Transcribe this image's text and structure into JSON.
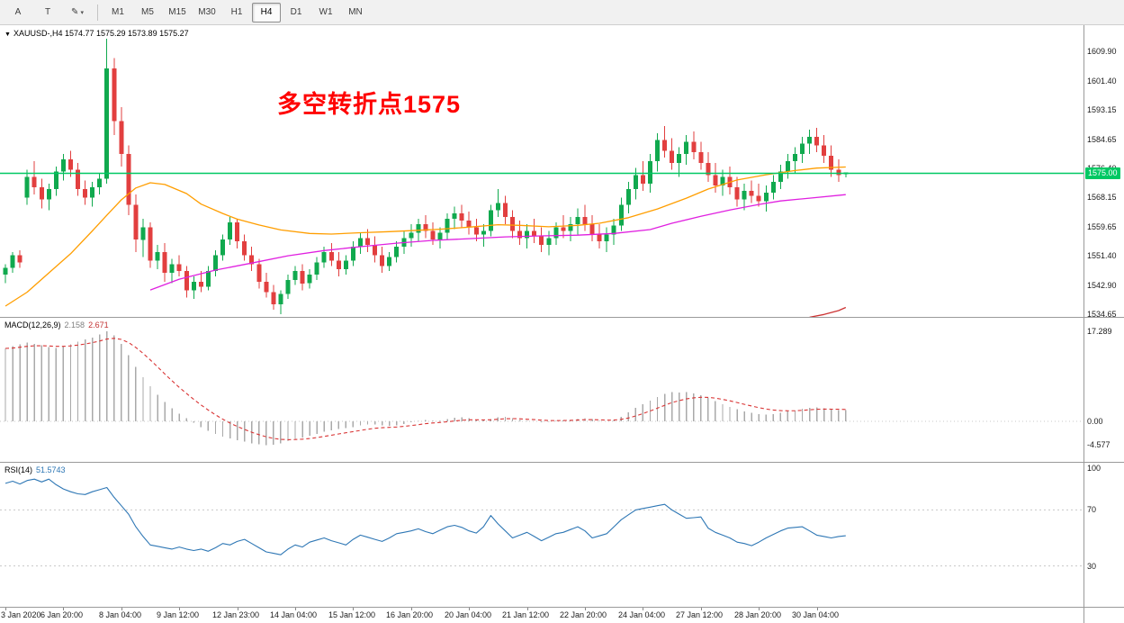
{
  "toolbar": {
    "tools": [
      {
        "name": "cursor-tool",
        "label": "A"
      },
      {
        "name": "text-tool",
        "label": "T"
      },
      {
        "name": "draw-tool",
        "label": "✎",
        "caret": "▾"
      }
    ],
    "timeframes": [
      {
        "label": "M1"
      },
      {
        "label": "M5"
      },
      {
        "label": "M15"
      },
      {
        "label": "M30"
      },
      {
        "label": "H1"
      },
      {
        "label": "H4",
        "selected": true
      },
      {
        "label": "D1"
      },
      {
        "label": "W1"
      },
      {
        "label": "MN"
      }
    ]
  },
  "main_chart": {
    "collapse_icon": "▼",
    "symbol_text": "XAUUSD-,H4",
    "ohlc_text": "1574.77 1575.29 1573.89 1575.27",
    "annotation_text": "多空转折点1575",
    "hline": {
      "price": 1575.0,
      "label": "1575.00"
    },
    "axis": {
      "max": 1617.4,
      "min": 1533.9
    },
    "scale_ticks": [
      "1609.90",
      "1601.40",
      "1593.15",
      "1584.65",
      "1576.40",
      "1568.15",
      "1559.65",
      "1551.40",
      "1542.90",
      "1534.65"
    ]
  },
  "macd_panel": {
    "label": "MACD(12,26,9)",
    "value_main": "2.158",
    "value_signal": "2.671",
    "axis": {
      "max": 19.88,
      "min": -7.78
    },
    "scale_ticks": [
      "17.289",
      "0.00",
      "-4.577"
    ]
  },
  "rsi_panel": {
    "label": "RSI(14)",
    "value": "51.5743",
    "axis": {
      "max": 103.7,
      "min": 0.8
    },
    "levels": [
      70,
      30
    ],
    "scale_ticks": [
      "100",
      "70",
      "30"
    ]
  },
  "colors": {
    "bull": "#10a94e",
    "bear": "#e23f3f",
    "hline": "#00c863",
    "annotation": "#ff0000",
    "macd_hist": "#a9a9a9",
    "macd_signal": "#d93434",
    "rsi_line": "#2e77b5",
    "value_main": "#808080",
    "value_signal": "#c23232"
  },
  "chart_data": {
    "type": "candlestick",
    "symbol": "XAUUSD-",
    "timeframe": "H4",
    "title": "XAUUSD-,H4",
    "price_range": [
      1533.9,
      1617.4
    ],
    "ohlc": [
      [
        1546,
        1549,
        1543.5,
        1548
      ],
      [
        1548,
        1552.5,
        1546.5,
        1551.5
      ],
      [
        1551.5,
        1553,
        1548,
        1549.5
      ],
      [
        1568,
        1576,
        1566,
        1574
      ],
      [
        1574,
        1578.5,
        1569,
        1571
      ],
      [
        1571,
        1573.5,
        1565,
        1567.5
      ],
      [
        1567.5,
        1572,
        1564.5,
        1570.5
      ],
      [
        1570.5,
        1577,
        1568.5,
        1575.5
      ],
      [
        1575.5,
        1580.5,
        1573,
        1579
      ],
      [
        1579,
        1581.5,
        1574,
        1576
      ],
      [
        1576,
        1578,
        1568.5,
        1570.5
      ],
      [
        1570.5,
        1573,
        1566,
        1568
      ],
      [
        1568,
        1572.5,
        1565.5,
        1571
      ],
      [
        1571,
        1575,
        1569,
        1573.5
      ],
      [
        1573.5,
        1613.5,
        1572,
        1605
      ],
      [
        1605,
        1608,
        1586,
        1590
      ],
      [
        1590,
        1594,
        1577,
        1580.5
      ],
      [
        1580.5,
        1583,
        1563,
        1566
      ],
      [
        1566,
        1569,
        1552.5,
        1556
      ],
      [
        1556,
        1562,
        1551,
        1559.5
      ],
      [
        1559.5,
        1561,
        1548,
        1550
      ],
      [
        1550,
        1554.5,
        1547.5,
        1552.5
      ],
      [
        1552.5,
        1555,
        1544,
        1546.5
      ],
      [
        1546.5,
        1550.5,
        1543.5,
        1549
      ],
      [
        1549,
        1551.5,
        1545.5,
        1547
      ],
      [
        1547,
        1548.5,
        1539.5,
        1541.5
      ],
      [
        1541.5,
        1545.5,
        1539,
        1544
      ],
      [
        1544,
        1547,
        1541,
        1542.5
      ],
      [
        1542.5,
        1548.5,
        1541.5,
        1547
      ],
      [
        1547,
        1553,
        1545.5,
        1551.5
      ],
      [
        1551.5,
        1557.5,
        1550,
        1556
      ],
      [
        1556,
        1562.5,
        1554.5,
        1561
      ],
      [
        1561,
        1562,
        1553.5,
        1555.5
      ],
      [
        1555.5,
        1557.5,
        1550,
        1551.5
      ],
      [
        1551.5,
        1554,
        1547,
        1549
      ],
      [
        1549,
        1550.5,
        1542,
        1544
      ],
      [
        1544,
        1546.5,
        1539.5,
        1541
      ],
      [
        1541,
        1543,
        1536,
        1537.5
      ],
      [
        1537.5,
        1541.5,
        1534.7,
        1540.5
      ],
      [
        1540.5,
        1546,
        1539,
        1544.5
      ],
      [
        1544.5,
        1548.5,
        1543,
        1547
      ],
      [
        1547,
        1549,
        1541.5,
        1543.5
      ],
      [
        1543.5,
        1547.5,
        1542,
        1546
      ],
      [
        1546,
        1551,
        1544.5,
        1549.5
      ],
      [
        1549.5,
        1554,
        1548,
        1552.5
      ],
      [
        1552.5,
        1555,
        1548.5,
        1550
      ],
      [
        1550,
        1552.5,
        1545.5,
        1547.5
      ],
      [
        1547.5,
        1551.5,
        1546,
        1550
      ],
      [
        1550,
        1555.5,
        1548.5,
        1554
      ],
      [
        1554,
        1558,
        1552,
        1556.5
      ],
      [
        1556.5,
        1559,
        1552.5,
        1554.5
      ],
      [
        1554.5,
        1557,
        1549.5,
        1551.5
      ],
      [
        1551.5,
        1554,
        1546.5,
        1548.5
      ],
      [
        1548.5,
        1552.5,
        1547,
        1551
      ],
      [
        1551,
        1555.5,
        1549.5,
        1554
      ],
      [
        1554,
        1558.5,
        1552,
        1556.5
      ],
      [
        1556.5,
        1560.5,
        1554,
        1558
      ],
      [
        1558,
        1562,
        1555.5,
        1560.5
      ],
      [
        1560.5,
        1563,
        1556.5,
        1558.5
      ],
      [
        1558.5,
        1561,
        1554.5,
        1556
      ],
      [
        1556,
        1559.5,
        1553.5,
        1558
      ],
      [
        1558,
        1563.5,
        1556,
        1562
      ],
      [
        1562,
        1565.5,
        1559,
        1563.5
      ],
      [
        1563.5,
        1566,
        1559.5,
        1561.5
      ],
      [
        1561.5,
        1564,
        1557.5,
        1559.5
      ],
      [
        1559.5,
        1562,
        1555.5,
        1557.5
      ],
      [
        1557.5,
        1560.5,
        1554,
        1558.5
      ],
      [
        1558.5,
        1566,
        1557,
        1564.5
      ],
      [
        1564.5,
        1570.5,
        1562.5,
        1566.5
      ],
      [
        1566.5,
        1568.5,
        1560.5,
        1562.5
      ],
      [
        1562.5,
        1564.5,
        1556.5,
        1558.5
      ],
      [
        1558.5,
        1561.5,
        1554.5,
        1556.5
      ],
      [
        1556.5,
        1560.5,
        1553.5,
        1558.5
      ],
      [
        1558.5,
        1562,
        1555,
        1557
      ],
      [
        1557,
        1559.5,
        1552.5,
        1554.5
      ],
      [
        1554.5,
        1558.5,
        1551.5,
        1556.5
      ],
      [
        1556.5,
        1561,
        1554.5,
        1559.5
      ],
      [
        1559.5,
        1563,
        1556.5,
        1558.5
      ],
      [
        1558.5,
        1562.5,
        1555.5,
        1560.5
      ],
      [
        1560.5,
        1565,
        1557.5,
        1562.5
      ],
      [
        1562.5,
        1566,
        1558.5,
        1560.5
      ],
      [
        1560.5,
        1563,
        1555.5,
        1557.5
      ],
      [
        1557.5,
        1560.5,
        1553.5,
        1555.5
      ],
      [
        1555.5,
        1559.5,
        1552.5,
        1557.5
      ],
      [
        1557.5,
        1562,
        1554.5,
        1560
      ],
      [
        1560,
        1568,
        1558.5,
        1566
      ],
      [
        1566,
        1572.5,
        1563.5,
        1570.5
      ],
      [
        1570.5,
        1576.5,
        1567.5,
        1574.5
      ],
      [
        1574.5,
        1578.5,
        1570,
        1572
      ],
      [
        1572,
        1580.5,
        1569.5,
        1578.5
      ],
      [
        1578.5,
        1586.5,
        1575.5,
        1584.5
      ],
      [
        1584.5,
        1588.5,
        1579.5,
        1581.5
      ],
      [
        1581.5,
        1585,
        1576,
        1578
      ],
      [
        1578,
        1582.5,
        1574,
        1580.5
      ],
      [
        1580.5,
        1586,
        1577.5,
        1584
      ],
      [
        1584,
        1587,
        1579,
        1581
      ],
      [
        1581,
        1584,
        1576,
        1578
      ],
      [
        1578,
        1581,
        1572.5,
        1574.5
      ],
      [
        1574.5,
        1578,
        1569.5,
        1571.5
      ],
      [
        1571.5,
        1576,
        1568.5,
        1574
      ],
      [
        1574,
        1577,
        1569,
        1571
      ],
      [
        1571,
        1574,
        1565.5,
        1567.5
      ],
      [
        1567.5,
        1572,
        1564.5,
        1570
      ],
      [
        1570,
        1573,
        1566.5,
        1568.5
      ],
      [
        1568.5,
        1572,
        1565.5,
        1567
      ],
      [
        1567,
        1571.5,
        1564,
        1569.5
      ],
      [
        1569.5,
        1574.5,
        1567.5,
        1572.5
      ],
      [
        1572.5,
        1577.5,
        1570.5,
        1575.5
      ],
      [
        1575.5,
        1580.5,
        1573.5,
        1578.5
      ],
      [
        1578.5,
        1582.5,
        1575,
        1580.5
      ],
      [
        1580.5,
        1585.5,
        1578,
        1583.5
      ],
      [
        1583.5,
        1587.5,
        1580.5,
        1585.5
      ],
      [
        1585.5,
        1588,
        1581,
        1583
      ],
      [
        1583,
        1586,
        1578,
        1580
      ],
      [
        1580,
        1583,
        1574,
        1576
      ],
      [
        1576,
        1579,
        1572.5,
        1574.5
      ],
      [
        1574.77,
        1575.29,
        1573.89,
        1575.27
      ]
    ],
    "overlays": [
      {
        "name": "ma-fast-orange",
        "color": "#ff9e00",
        "points": [
          [
            0,
            1537.0
          ],
          [
            3,
            1541.0
          ],
          [
            6,
            1546.5
          ],
          [
            9,
            1552.0
          ],
          [
            12,
            1558.5
          ],
          [
            14,
            1563.0
          ],
          [
            16,
            1567.4
          ],
          [
            18,
            1570.8
          ],
          [
            20,
            1572.3
          ],
          [
            22,
            1571.8
          ],
          [
            25,
            1569.2
          ],
          [
            27,
            1566.2
          ],
          [
            30,
            1563.5
          ],
          [
            32,
            1561.9
          ],
          [
            35,
            1560.2
          ],
          [
            38,
            1558.8
          ],
          [
            42,
            1557.8
          ],
          [
            45,
            1557.6
          ],
          [
            49,
            1558.0
          ],
          [
            53,
            1558.3
          ],
          [
            56,
            1558.6
          ],
          [
            60,
            1559.0
          ],
          [
            64,
            1559.6
          ],
          [
            68,
            1560.3
          ],
          [
            71,
            1560.1
          ],
          [
            75,
            1559.7
          ],
          [
            79,
            1560.1
          ],
          [
            82,
            1560.7
          ],
          [
            86,
            1562.3
          ],
          [
            90,
            1564.8
          ],
          [
            94,
            1567.9
          ],
          [
            97,
            1570.5
          ],
          [
            101,
            1573.1
          ],
          [
            105,
            1574.6
          ],
          [
            109,
            1575.8
          ],
          [
            112,
            1576.5
          ],
          [
            116,
            1576.8
          ]
        ]
      },
      {
        "name": "ma-slow-magenta",
        "color": "#e020e0",
        "points": [
          [
            20,
            1541.6
          ],
          [
            24,
            1544.7
          ],
          [
            29,
            1547.3
          ],
          [
            34,
            1549.3
          ],
          [
            39,
            1551.4
          ],
          [
            44,
            1552.9
          ],
          [
            49,
            1554.0
          ],
          [
            54,
            1555.0
          ],
          [
            59,
            1555.8
          ],
          [
            64,
            1556.3
          ],
          [
            69,
            1556.8
          ],
          [
            74,
            1557.1
          ],
          [
            79,
            1557.3
          ],
          [
            84,
            1557.8
          ],
          [
            89,
            1558.9
          ],
          [
            92,
            1560.7
          ],
          [
            96,
            1562.7
          ],
          [
            100,
            1564.5
          ],
          [
            104,
            1566.1
          ],
          [
            107,
            1567.1
          ],
          [
            111,
            1567.9
          ],
          [
            116,
            1568.9
          ]
        ]
      },
      {
        "name": "ma-long-red",
        "color": "#cc3333",
        "points": [
          [
            111,
            1533.8
          ],
          [
            113,
            1534.6
          ],
          [
            115,
            1535.7
          ],
          [
            116,
            1536.6
          ]
        ]
      }
    ],
    "macd_histogram": [
      14.0,
      14.4,
      14.8,
      15.1,
      14.9,
      14.6,
      14.3,
      14.1,
      14.4,
      14.8,
      15.3,
      15.7,
      16.1,
      16.7,
      17.289,
      16.5,
      14.9,
      12.7,
      10.5,
      8.5,
      6.7,
      5.1,
      3.7,
      2.5,
      1.5,
      0.6,
      -0.3,
      -1.1,
      -1.8,
      -2.4,
      -2.9,
      -3.3,
      -3.6,
      -3.9,
      -4.2,
      -4.45,
      -4.577,
      -4.5,
      -4.2,
      -3.8,
      -3.4,
      -3.1,
      -2.8,
      -2.4,
      -2.0,
      -1.7,
      -1.5,
      -1.3,
      -1.1,
      -0.8,
      -0.6,
      -0.6,
      -0.8,
      -0.9,
      -0.8,
      -0.5,
      -0.2,
      0.1,
      0.3,
      0.2,
      0.2,
      0.4,
      0.7,
      0.8,
      0.6,
      0.3,
      0.2,
      0.4,
      0.8,
      0.9,
      0.6,
      0.3,
      0.1,
      0.0,
      -0.2,
      -0.1,
      0.1,
      0.2,
      0.3,
      0.5,
      0.6,
      0.4,
      0.1,
      0.0,
      0.3,
      0.9,
      1.7,
      2.6,
      3.3,
      4.0,
      4.7,
      5.3,
      5.6,
      5.5,
      5.6,
      5.4,
      5.0,
      4.5,
      3.9,
      3.3,
      2.8,
      2.3,
      1.9,
      1.6,
      1.4,
      1.3,
      1.4,
      1.6,
      1.9,
      2.1,
      2.4,
      2.6,
      2.7,
      2.5,
      2.3,
      2.2,
      2.158
    ],
    "rsi": [
      89,
      90.5,
      88.5,
      91,
      92,
      90,
      92,
      88,
      85,
      83,
      81.5,
      81,
      83,
      84.5,
      86,
      79,
      73,
      67,
      58,
      51,
      45,
      44,
      43,
      42,
      43.5,
      42,
      41,
      42,
      40.5,
      43,
      46,
      45,
      47.5,
      49,
      46,
      43,
      40,
      39,
      38,
      42,
      45,
      43.5,
      47,
      48.5,
      50,
      48,
      46.5,
      45,
      49,
      52,
      50.5,
      49,
      47.5,
      50,
      53,
      54,
      55,
      56.5,
      54.5,
      53,
      55.5,
      58,
      59,
      57.5,
      55,
      53.5,
      58,
      66,
      60,
      55,
      50,
      52,
      54,
      51,
      48,
      50.5,
      53,
      54,
      56,
      58,
      55,
      50,
      51.5,
      53,
      58,
      63,
      66.5,
      70,
      71,
      72,
      73,
      74,
      70,
      67,
      64,
      64.5,
      65,
      57,
      54,
      52,
      50,
      47,
      46,
      44.5,
      47,
      50,
      52.5,
      55,
      57,
      57.5,
      58,
      55,
      52,
      51,
      50,
      51,
      51.57
    ],
    "x_labels": [
      {
        "i": 0,
        "text": "3 Jan 2020"
      },
      {
        "i": 8,
        "text": "6 Jan 20:00"
      },
      {
        "i": 16,
        "text": "8 Jan 04:00"
      },
      {
        "i": 24,
        "text": "9 Jan 12:00"
      },
      {
        "i": 32,
        "text": "12 Jan 23:00"
      },
      {
        "i": 40,
        "text": "14 Jan 04:00"
      },
      {
        "i": 48,
        "text": "15 Jan 12:00"
      },
      {
        "i": 56,
        "text": "16 Jan 20:00"
      },
      {
        "i": 64,
        "text": "20 Jan 04:00"
      },
      {
        "i": 72,
        "text": "21 Jan 12:00"
      },
      {
        "i": 80,
        "text": "22 Jan 20:00"
      },
      {
        "i": 88,
        "text": "24 Jan 04:00"
      },
      {
        "i": 96,
        "text": "27 Jan 12:00"
      },
      {
        "i": 104,
        "text": "28 Jan 20:00"
      },
      {
        "i": 112,
        "text": "30 Jan 04:00"
      }
    ]
  }
}
